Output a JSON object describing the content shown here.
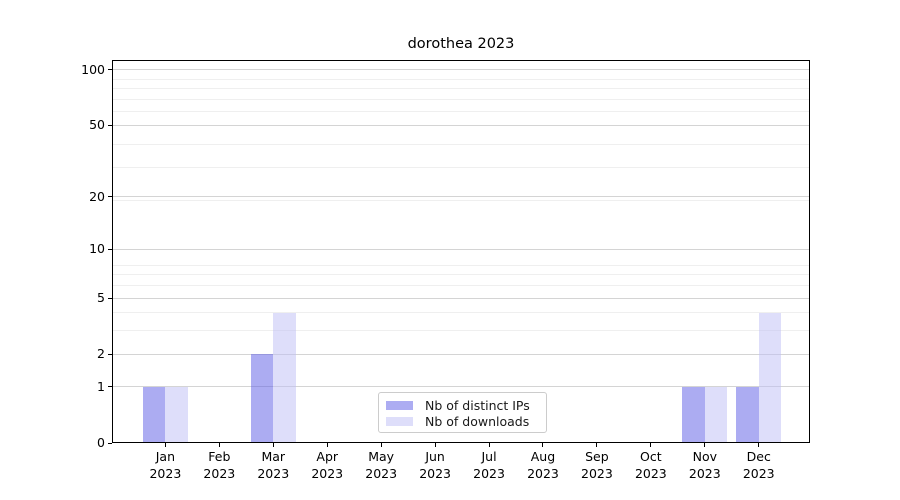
{
  "figure": {
    "title": "dorothea 2023"
  },
  "chart_data": {
    "type": "bar",
    "title": "dorothea 2023",
    "categories": [
      "Jan",
      "Feb",
      "Mar",
      "Apr",
      "May",
      "Jun",
      "Jul",
      "Aug",
      "Sep",
      "Oct",
      "Nov",
      "Dec"
    ],
    "x_tick_second_line": "2023",
    "series": [
      {
        "name": "Nb of distinct IPs",
        "color": "#5a5ae6",
        "alpha": 0.5,
        "values": [
          1,
          0,
          2,
          0,
          0,
          0,
          0,
          0,
          0,
          0,
          1,
          1
        ]
      },
      {
        "name": "Nb of downloads",
        "color": "#bebef5",
        "alpha": 0.5,
        "values": [
          1,
          0,
          4,
          0,
          0,
          0,
          0,
          0,
          0,
          0,
          1,
          4
        ]
      }
    ],
    "yscale": "log1p",
    "ylim": [
      0,
      113
    ],
    "yticks": [
      0,
      1,
      2,
      5,
      10,
      20,
      50,
      100
    ],
    "yticks_minor": [
      3,
      4,
      6,
      7,
      8,
      19,
      29,
      39,
      59,
      69,
      79,
      89
    ],
    "grid": "on",
    "legend": {
      "position": "lower center",
      "entries": [
        "Nb of distinct IPs",
        "Nb of downloads"
      ]
    }
  },
  "colors": {
    "background": "#ffffff",
    "spine": "#000000",
    "text": "#000000",
    "grid_major": "#d4d4d4",
    "grid_minor": "#efefef",
    "legend_border": "#cccccc",
    "bar_distinct_ips_rendered": "#adadf3",
    "bar_downloads_rendered": "#dedefa"
  }
}
